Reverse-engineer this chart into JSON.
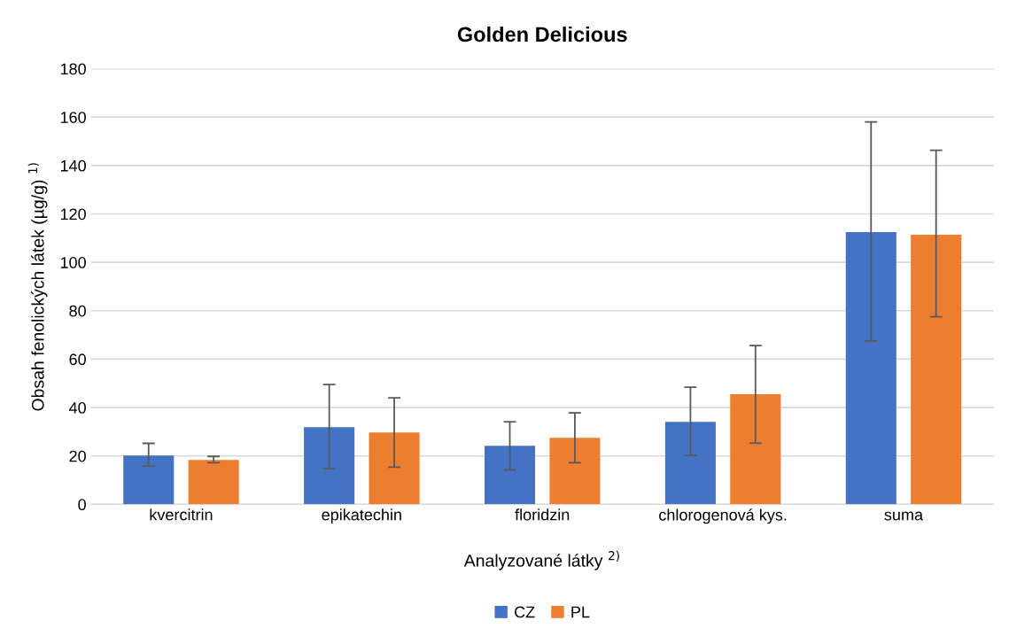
{
  "chart_data": {
    "type": "bar",
    "title": "Golden Delicious",
    "xlabel": "Analyzované látky $^{2)}$",
    "ylabel": "Obsah fenolických látek (µg/g) $^{1)}$",
    "categories": [
      "kvercitrin",
      "epikatechin",
      "floridzin",
      "chlorogenová kys.",
      "suma"
    ],
    "series": [
      {
        "name": "CZ",
        "color": "#4472c4",
        "values": [
          20.2,
          31.9,
          24.2,
          34.1,
          112.5
        ],
        "errors": [
          [
            15.8,
            25.2
          ],
          [
            14.7,
            49.5
          ],
          [
            14.3,
            34.1
          ],
          [
            20.2,
            48.4
          ],
          [
            67.5,
            158
          ]
        ]
      },
      {
        "name": "PL",
        "color": "#ed7d31",
        "values": [
          18.3,
          29.7,
          27.5,
          45.5,
          111.4
        ],
        "errors": [
          [
            17.2,
            19.8
          ],
          [
            15.4,
            44
          ],
          [
            17.2,
            37.8
          ],
          [
            25.3,
            65.6
          ],
          [
            77.5,
            146.3
          ]
        ]
      }
    ],
    "ylim": [
      0,
      180
    ],
    "yticks": [
      0,
      20,
      40,
      60,
      80,
      100,
      120,
      140,
      160,
      180
    ],
    "grid": "y",
    "legend": "bottom"
  }
}
